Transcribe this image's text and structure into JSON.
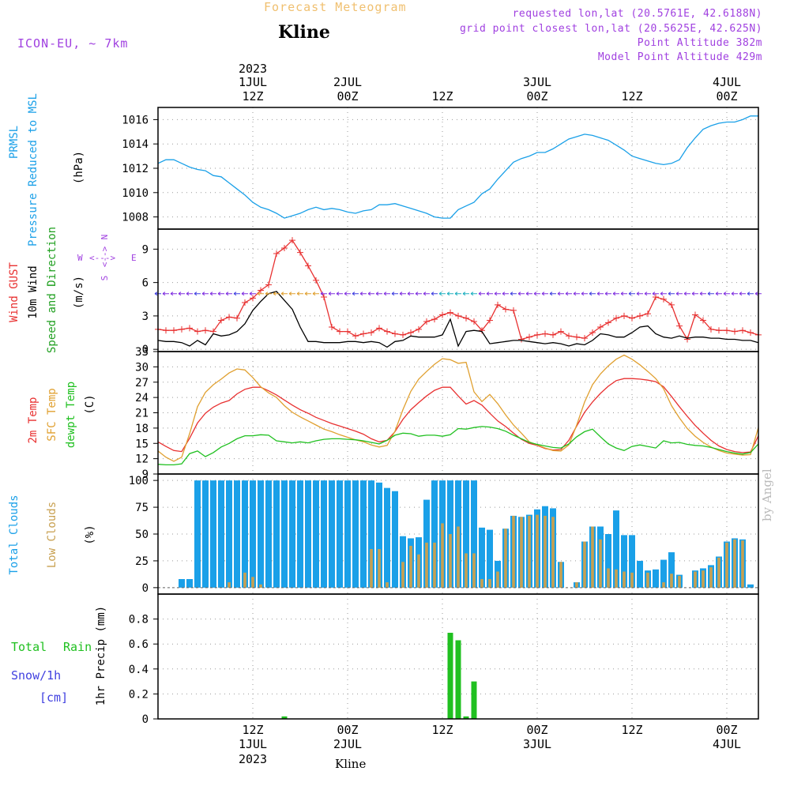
{
  "header": {
    "title": "Forecast Meteogram",
    "station": "Kline",
    "model": "ICON-EU, ~ 7km",
    "requested": "requested lon,lat (20.5761E, 42.6188N)",
    "grid_point": "grid point closest lon,lat (20.5625E, 42.625N)",
    "point_altitude": "Point Altitude 382m",
    "model_altitude": "Model Point Altitude 429m",
    "byline": "by Angel",
    "bottom_station": "Kline"
  },
  "colors": {
    "title": "#f0c070",
    "info": "#a040e0",
    "pressure": "#1aa0e8",
    "gust": "#e83030",
    "wind": "#000000",
    "direction_label": "#20a020",
    "temp2m": "#e83030",
    "sfc_temp": "#e0a030",
    "dewpt": "#20c020",
    "total_clouds": "#1aa0e8",
    "low_clouds": "#c8a050",
    "rain": "#20c020",
    "snow": "#4040e0"
  },
  "time_axis": {
    "top_labels": [
      {
        "line1": "2023",
        "line2": "1JUL",
        "line3": "12Z",
        "h": 12
      },
      {
        "line1": "",
        "line2": "2JUL",
        "line3": "00Z",
        "h": 24
      },
      {
        "line1": "",
        "line2": "",
        "line3": "12Z",
        "h": 36
      },
      {
        "line1": "",
        "line2": "3JUL",
        "line3": "00Z",
        "h": 48
      },
      {
        "line1": "",
        "line2": "",
        "line3": "12Z",
        "h": 60
      },
      {
        "line1": "",
        "line2": "4JUL",
        "line3": "00Z",
        "h": 72
      }
    ],
    "bottom_labels": [
      {
        "line1": "12Z",
        "line2": "1JUL",
        "line3": "2023",
        "h": 12
      },
      {
        "line1": "00Z",
        "line2": "2JUL",
        "line3": "",
        "h": 24
      },
      {
        "line1": "12Z",
        "line2": "",
        "line3": "",
        "h": 36
      },
      {
        "line1": "00Z",
        "line2": "3JUL",
        "line3": "",
        "h": 48
      },
      {
        "line1": "12Z",
        "line2": "",
        "line3": "",
        "h": 60
      },
      {
        "line1": "00Z",
        "line2": "4JUL",
        "line3": "",
        "h": 72
      }
    ]
  },
  "panel_labels": {
    "pressure": [
      "PRMSL",
      "Pressure Reduced to MSL",
      "(hPa)"
    ],
    "wind": [
      "Wind GUST",
      "10m Wind",
      "Speed and Direction",
      "(m/s)"
    ],
    "compass": {
      "n": "N",
      "s": "S",
      "w": "W",
      "e": "E",
      "mid": "<--->",
      "vert": "<-->"
    },
    "temp": [
      "2m Temp",
      "SFC Temp",
      "dewpt Temp",
      "(C)"
    ],
    "clouds": [
      "Total Clouds",
      "Low Clouds",
      "(%)"
    ],
    "precip": [
      "Total",
      "Rain",
      "Snow/1h",
      "[cm]",
      "1hr Precip (mm)"
    ]
  },
  "chart_data": [
    {
      "type": "line",
      "name": "pressure",
      "ylabel": "(hPa)",
      "ylim": [
        1007,
        1017
      ],
      "yticks": [
        1008,
        1010,
        1012,
        1014,
        1016
      ],
      "grid": true,
      "x_hours": [
        0,
        1,
        2,
        3,
        4,
        5,
        6,
        7,
        8,
        9,
        10,
        11,
        12,
        13,
        14,
        15,
        16,
        17,
        18,
        19,
        20,
        21,
        22,
        23,
        24,
        25,
        26,
        27,
        28,
        29,
        30,
        31,
        32,
        33,
        34,
        35,
        36,
        37,
        38,
        39,
        40,
        41,
        42,
        43,
        44,
        45,
        46,
        47,
        48,
        49,
        50,
        51,
        52,
        53,
        54,
        55,
        56,
        57,
        58,
        59,
        60,
        61,
        62,
        63,
        64,
        65,
        66,
        67,
        68,
        69,
        70,
        71,
        72,
        73,
        74,
        75,
        76
      ],
      "series": [
        {
          "name": "PRMSL",
          "values": [
            1012.4,
            1012.7,
            1012.7,
            1012.4,
            1012.1,
            1011.9,
            1011.8,
            1011.4,
            1011.3,
            1010.8,
            1010.3,
            1009.8,
            1009.2,
            1008.8,
            1008.6,
            1008.3,
            1007.9,
            1008.1,
            1008.3,
            1008.6,
            1008.8,
            1008.6,
            1008.7,
            1008.6,
            1008.4,
            1008.3,
            1008.5,
            1008.6,
            1009.0,
            1009.0,
            1009.1,
            1008.9,
            1008.7,
            1008.5,
            1008.3,
            1008.0,
            1007.9,
            1007.9,
            1008.6,
            1008.9,
            1009.2,
            1009.9,
            1010.3,
            1011.1,
            1011.8,
            1012.5,
            1012.8,
            1013.0,
            1013.3,
            1013.3,
            1013.6,
            1014.0,
            1014.4,
            1014.6,
            1014.8,
            1014.7,
            1014.5,
            1014.3,
            1013.9,
            1013.5,
            1013.0,
            1012.8,
            1012.6,
            1012.4,
            1012.3,
            1012.4,
            1012.7,
            1013.7,
            1014.5,
            1015.2,
            1015.5,
            1015.7,
            1015.8,
            1015.8,
            1016.0,
            1016.3,
            1016.3
          ]
        }
      ]
    },
    {
      "type": "line",
      "name": "wind",
      "ylabel": "(m/s)",
      "ylim": [
        -0.2,
        10.8
      ],
      "yticks": [
        0,
        3,
        6,
        9
      ],
      "grid": true,
      "x_hours": [
        0,
        1,
        2,
        3,
        4,
        5,
        6,
        7,
        8,
        9,
        10,
        11,
        12,
        13,
        14,
        15,
        16,
        17,
        18,
        19,
        20,
        21,
        22,
        23,
        24,
        25,
        26,
        27,
        28,
        29,
        30,
        31,
        32,
        33,
        34,
        35,
        36,
        37,
        38,
        39,
        40,
        41,
        42,
        43,
        44,
        45,
        46,
        47,
        48,
        49,
        50,
        51,
        52,
        53,
        54,
        55,
        56,
        57,
        58,
        59,
        60,
        61,
        62,
        63,
        64,
        65,
        66,
        67,
        68,
        69,
        70,
        71,
        72,
        73,
        74,
        75,
        76
      ],
      "series": [
        {
          "name": "Wind GUST",
          "values": [
            1.8,
            1.7,
            1.7,
            1.8,
            1.9,
            1.6,
            1.7,
            1.6,
            2.6,
            2.9,
            2.8,
            4.2,
            4.6,
            5.3,
            5.8,
            8.6,
            9.1,
            9.8,
            8.7,
            7.5,
            6.2,
            4.7,
            2.0,
            1.6,
            1.6,
            1.2,
            1.4,
            1.5,
            1.9,
            1.6,
            1.4,
            1.3,
            1.5,
            1.8,
            2.5,
            2.7,
            3.1,
            3.3,
            3.0,
            2.8,
            2.5,
            1.7,
            2.6,
            4.0,
            3.6,
            3.5,
            0.9,
            1.1,
            1.3,
            1.4,
            1.3,
            1.6,
            1.2,
            1.1,
            1.0,
            1.5,
            2.0,
            2.4,
            2.8,
            3.0,
            2.8,
            3.0,
            3.2,
            4.7,
            4.5,
            4.0,
            2.1,
            0.9,
            3.1,
            2.6,
            1.8,
            1.7,
            1.7,
            1.6,
            1.7,
            1.5,
            1.3
          ]
        },
        {
          "name": "10m Wind",
          "values": [
            0.8,
            0.7,
            0.7,
            0.6,
            0.3,
            0.8,
            0.4,
            1.4,
            1.2,
            1.3,
            1.6,
            2.3,
            3.5,
            4.3,
            5.0,
            5.2,
            4.4,
            3.6,
            2.0,
            0.7,
            0.7,
            0.6,
            0.6,
            0.6,
            0.7,
            0.7,
            0.6,
            0.7,
            0.6,
            0.2,
            0.7,
            0.8,
            1.2,
            1.1,
            1.1,
            1.1,
            1.3,
            2.7,
            0.3,
            1.6,
            1.7,
            1.6,
            0.5,
            0.6,
            0.7,
            0.8,
            0.8,
            0.7,
            0.6,
            0.5,
            0.6,
            0.5,
            0.3,
            0.5,
            0.4,
            0.8,
            1.4,
            1.3,
            1.1,
            1.1,
            1.5,
            2.0,
            2.1,
            1.4,
            1.1,
            1.0,
            1.2,
            1.0,
            1.1,
            1.1,
            1.0,
            1.0,
            0.9,
            0.9,
            0.8,
            0.8,
            0.6
          ]
        }
      ]
    },
    {
      "type": "line",
      "name": "temperature",
      "ylabel": "(C)",
      "ylim": [
        9,
        33
      ],
      "yticks": [
        9,
        12,
        15,
        18,
        21,
        24,
        27,
        30,
        33
      ],
      "grid": true,
      "x_hours": [
        0,
        1,
        2,
        3,
        4,
        5,
        6,
        7,
        8,
        9,
        10,
        11,
        12,
        13,
        14,
        15,
        16,
        17,
        18,
        19,
        20,
        21,
        22,
        23,
        24,
        25,
        26,
        27,
        28,
        29,
        30,
        31,
        32,
        33,
        34,
        35,
        36,
        37,
        38,
        39,
        40,
        41,
        42,
        43,
        44,
        45,
        46,
        47,
        48,
        49,
        50,
        51,
        52,
        53,
        54,
        55,
        56,
        57,
        58,
        59,
        60,
        61,
        62,
        63,
        64,
        65,
        66,
        67,
        68,
        69,
        70,
        71,
        72,
        73,
        74,
        75,
        76
      ],
      "series": [
        {
          "name": "2m Temp",
          "values": [
            15.3,
            14.4,
            13.6,
            13.4,
            16.0,
            19.0,
            20.9,
            22.1,
            22.9,
            23.4,
            24.7,
            25.6,
            26.0,
            26.0,
            25.3,
            24.5,
            23.5,
            22.5,
            21.6,
            20.9,
            20.1,
            19.5,
            18.9,
            18.4,
            17.9,
            17.4,
            16.8,
            15.9,
            15.3,
            15.6,
            17.3,
            19.7,
            21.6,
            23.0,
            24.3,
            25.4,
            26.0,
            26.0,
            24.3,
            22.7,
            23.4,
            22.5,
            20.9,
            19.4,
            18.3,
            17.0,
            15.8,
            15.0,
            14.6,
            14.0,
            13.7,
            13.8,
            15.6,
            18.4,
            21.1,
            23.1,
            24.8,
            26.2,
            27.3,
            27.7,
            27.7,
            27.6,
            27.4,
            27.1,
            26.1,
            24.2,
            22.2,
            20.3,
            18.5,
            17.0,
            15.6,
            14.5,
            13.8,
            13.4,
            13.2,
            13.3,
            16.5
          ]
        },
        {
          "name": "SFC Temp",
          "values": [
            13.5,
            12.3,
            11.5,
            12.3,
            16.9,
            22.2,
            25.0,
            26.5,
            27.6,
            28.8,
            29.6,
            29.4,
            27.9,
            26.1,
            24.9,
            24.0,
            22.4,
            21.1,
            20.2,
            19.4,
            18.6,
            17.8,
            17.3,
            16.7,
            16.2,
            15.7,
            15.3,
            14.7,
            14.3,
            14.6,
            17.4,
            21.6,
            25.2,
            27.6,
            29.1,
            30.5,
            31.6,
            31.4,
            30.7,
            30.9,
            25.1,
            23.2,
            24.6,
            22.8,
            20.6,
            18.6,
            17.0,
            15.3,
            14.7,
            14.1,
            13.6,
            13.5,
            14.7,
            18.6,
            23.1,
            26.5,
            28.6,
            30.2,
            31.5,
            32.3,
            31.5,
            30.4,
            29.1,
            27.7,
            25.7,
            22.4,
            20.0,
            17.9,
            16.4,
            15.2,
            14.3,
            13.6,
            13.1,
            12.9,
            12.7,
            12.8,
            18.1
          ]
        },
        {
          "name": "dewpt Temp",
          "values": [
            10.9,
            10.8,
            10.8,
            11.0,
            13.0,
            13.5,
            12.4,
            13.2,
            14.3,
            15.0,
            15.9,
            16.5,
            16.5,
            16.7,
            16.6,
            15.5,
            15.3,
            15.1,
            15.3,
            15.1,
            15.5,
            15.8,
            15.9,
            15.9,
            15.8,
            15.7,
            15.5,
            15.2,
            14.9,
            15.6,
            16.6,
            17.0,
            16.9,
            16.4,
            16.6,
            16.6,
            16.4,
            16.7,
            17.9,
            17.8,
            18.1,
            18.3,
            18.2,
            17.9,
            17.4,
            16.6,
            15.9,
            15.2,
            14.8,
            14.5,
            14.2,
            14.1,
            14.9,
            16.3,
            17.3,
            17.8,
            16.3,
            14.9,
            14.1,
            13.6,
            14.4,
            14.7,
            14.4,
            14.1,
            15.5,
            15.1,
            15.2,
            14.8,
            14.6,
            14.5,
            14.2,
            13.8,
            13.4,
            13.1,
            12.9,
            13.2,
            14.9
          ]
        }
      ]
    },
    {
      "type": "bar",
      "name": "clouds",
      "ylabel": "(%)",
      "ylim": [
        -6,
        106
      ],
      "yticks": [
        0,
        25,
        50,
        75,
        100
      ],
      "grid": true,
      "x_hours": [
        0,
        1,
        2,
        3,
        4,
        5,
        6,
        7,
        8,
        9,
        10,
        11,
        12,
        13,
        14,
        15,
        16,
        17,
        18,
        19,
        20,
        21,
        22,
        23,
        24,
        25,
        26,
        27,
        28,
        29,
        30,
        31,
        32,
        33,
        34,
        35,
        36,
        37,
        38,
        39,
        40,
        41,
        42,
        43,
        44,
        45,
        46,
        47,
        48,
        49,
        50,
        51,
        52,
        53,
        54,
        55,
        56,
        57,
        58,
        59,
        60,
        61,
        62,
        63,
        64,
        65,
        66,
        67,
        68,
        69,
        70,
        71,
        72,
        73,
        74,
        75,
        76
      ],
      "series": [
        {
          "name": "Total Clouds",
          "values": [
            0,
            0,
            0,
            8,
            8,
            100,
            100,
            100,
            100,
            100,
            100,
            100,
            100,
            100,
            100,
            100,
            100,
            100,
            100,
            100,
            100,
            100,
            100,
            100,
            100,
            100,
            100,
            100,
            98,
            93,
            90,
            48,
            46,
            47,
            82,
            100,
            100,
            100,
            100,
            100,
            100,
            56,
            54,
            25,
            55,
            67,
            66,
            68,
            73,
            76,
            74,
            24,
            0,
            5,
            43,
            57,
            57,
            50,
            72,
            49,
            49,
            25,
            16,
            17,
            26,
            33,
            12,
            0,
            16,
            18,
            21,
            29,
            43,
            46,
            45,
            3,
            0
          ]
        },
        {
          "name": "Low Clouds",
          "values": [
            0,
            0,
            0,
            0,
            0,
            0,
            0,
            0,
            0,
            5,
            0,
            14,
            10,
            3,
            0,
            0,
            0,
            0,
            0,
            0,
            0,
            0,
            0,
            0,
            0,
            0,
            0,
            36,
            36,
            5,
            0,
            24,
            39,
            31,
            42,
            42,
            60,
            50,
            57,
            32,
            32,
            8,
            8,
            15,
            55,
            67,
            66,
            67,
            68,
            67,
            66,
            24,
            0,
            5,
            43,
            57,
            45,
            18,
            17,
            15,
            14,
            0,
            14,
            0,
            5,
            13,
            11,
            0,
            15,
            16,
            19,
            28,
            42,
            45,
            44,
            0,
            0
          ]
        }
      ]
    },
    {
      "type": "bar",
      "name": "precipitation",
      "ylabel": "1hr Precip (mm)",
      "ylim": [
        0,
        1.0
      ],
      "yticks": [
        0,
        0.2,
        0.4,
        0.6,
        0.8
      ],
      "grid": true,
      "x_hours": [
        16,
        37,
        38,
        39,
        40
      ],
      "series": [
        {
          "name": "Total Rain",
          "values": [
            0.02,
            0.69,
            0.63,
            0.02,
            0.3
          ]
        }
      ]
    }
  ]
}
